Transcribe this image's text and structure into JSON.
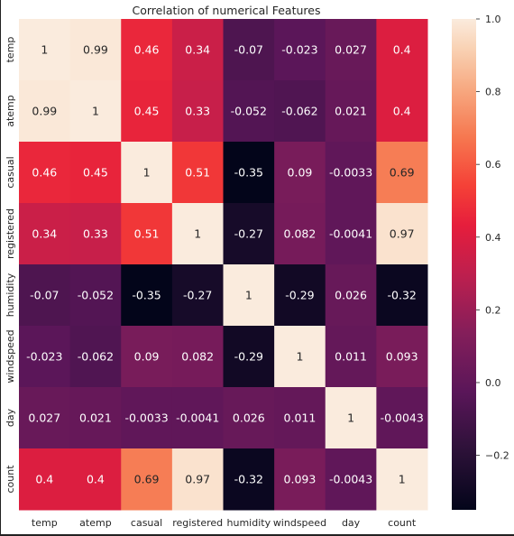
{
  "chart_data": {
    "type": "heatmap",
    "title": "Correlation of numerical Features",
    "xlabel": "",
    "ylabel": "",
    "x_labels": [
      "temp",
      "atemp",
      "casual",
      "registered",
      "humidity",
      "windspeed",
      "day",
      "count"
    ],
    "y_labels": [
      "temp",
      "atemp",
      "casual",
      "registered",
      "humidity",
      "windspeed",
      "day",
      "count"
    ],
    "values": [
      [
        1,
        0.99,
        0.46,
        0.34,
        -0.07,
        -0.023,
        0.027,
        0.4
      ],
      [
        0.99,
        1,
        0.45,
        0.33,
        -0.052,
        -0.062,
        0.021,
        0.4
      ],
      [
        0.46,
        0.45,
        1,
        0.51,
        -0.35,
        0.09,
        -0.0033,
        0.69
      ],
      [
        0.34,
        0.33,
        0.51,
        1,
        -0.27,
        0.082,
        -0.0041,
        0.97
      ],
      [
        -0.07,
        -0.052,
        -0.35,
        -0.27,
        1,
        -0.29,
        0.026,
        -0.32
      ],
      [
        -0.023,
        -0.062,
        0.09,
        0.082,
        -0.29,
        1,
        0.011,
        0.093
      ],
      [
        0.027,
        0.021,
        -0.0033,
        -0.0041,
        0.026,
        0.011,
        1,
        -0.0043
      ],
      [
        0.4,
        0.4,
        0.69,
        0.97,
        -0.32,
        0.093,
        -0.0043,
        1
      ]
    ],
    "cell_labels": [
      [
        "1",
        "0.99",
        "0.46",
        "0.34",
        "-0.07",
        "-0.023",
        "0.027",
        "0.4"
      ],
      [
        "0.99",
        "1",
        "0.45",
        "0.33",
        "-0.052",
        "-0.062",
        "0.021",
        "0.4"
      ],
      [
        "0.46",
        "0.45",
        "1",
        "0.51",
        "-0.35",
        "0.09",
        "-0.0033",
        "0.69"
      ],
      [
        "0.34",
        "0.33",
        "0.51",
        "1",
        "-0.27",
        "0.082",
        "-0.0041",
        "0.97"
      ],
      [
        "-0.07",
        "-0.052",
        "-0.35",
        "-0.27",
        "1",
        "-0.29",
        "0.026",
        "-0.32"
      ],
      [
        "-0.023",
        "-0.062",
        "0.09",
        "0.082",
        "-0.29",
        "1",
        "0.011",
        "0.093"
      ],
      [
        "0.027",
        "0.021",
        "-0.0033",
        "-0.0041",
        "0.026",
        "0.011",
        "1",
        "-0.0043"
      ],
      [
        "0.4",
        "0.4",
        "0.69",
        "0.97",
        "-0.32",
        "0.093",
        "-0.0043",
        "1"
      ]
    ],
    "colorbar": {
      "vmin": -0.35,
      "vmax": 1.0,
      "ticks": [
        1.0,
        0.8,
        0.6,
        0.4,
        0.2,
        0.0,
        -0.2
      ],
      "tick_labels": [
        "1.0",
        "0.8",
        "0.6",
        "0.4",
        "0.2",
        "0.0",
        "−0.2"
      ],
      "colormap": "rocket"
    },
    "grid": false,
    "legend": "colorbar-right"
  }
}
